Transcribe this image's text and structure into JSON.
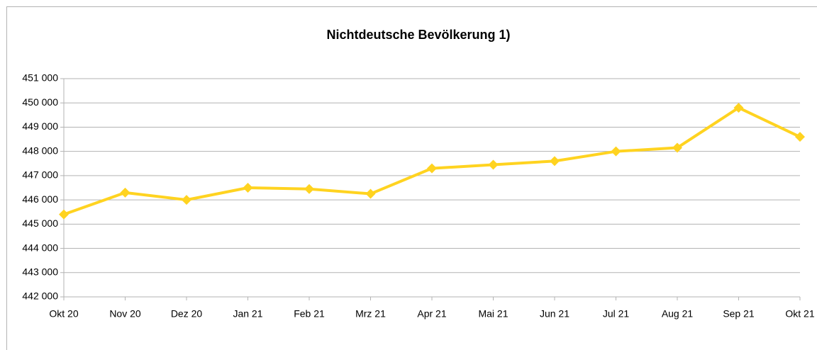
{
  "chart_data": {
    "type": "line",
    "title": "Nichtdeutsche Bevölkerung 1)",
    "categories": [
      "Okt 20",
      "Nov 20",
      "Dez 20",
      "Jan 21",
      "Feb 21",
      "Mrz 21",
      "Apr 21",
      "Mai 21",
      "Jun 21",
      "Jul 21",
      "Aug 21",
      "Sep 21",
      "Okt 21"
    ],
    "series": [
      {
        "name": "Nichtdeutsche Bevölkerung",
        "color": "#ffd320",
        "values": [
          445400,
          446300,
          446000,
          446500,
          446450,
          446250,
          447300,
          447450,
          447600,
          448000,
          448150,
          449800,
          448600
        ]
      }
    ],
    "ylim": [
      442000,
      451000
    ],
    "yticks": [
      {
        "value": 442000,
        "label": "442 000"
      },
      {
        "value": 443000,
        "label": "443 000"
      },
      {
        "value": 444000,
        "label": "444 000"
      },
      {
        "value": 445000,
        "label": "445 000"
      },
      {
        "value": 446000,
        "label": "446 000"
      },
      {
        "value": 447000,
        "label": "447 000"
      },
      {
        "value": 448000,
        "label": "448 000"
      },
      {
        "value": 449000,
        "label": "449 000"
      },
      {
        "value": 450000,
        "label": "450 000"
      },
      {
        "value": 451000,
        "label": "451 000"
      }
    ],
    "grid": true
  }
}
